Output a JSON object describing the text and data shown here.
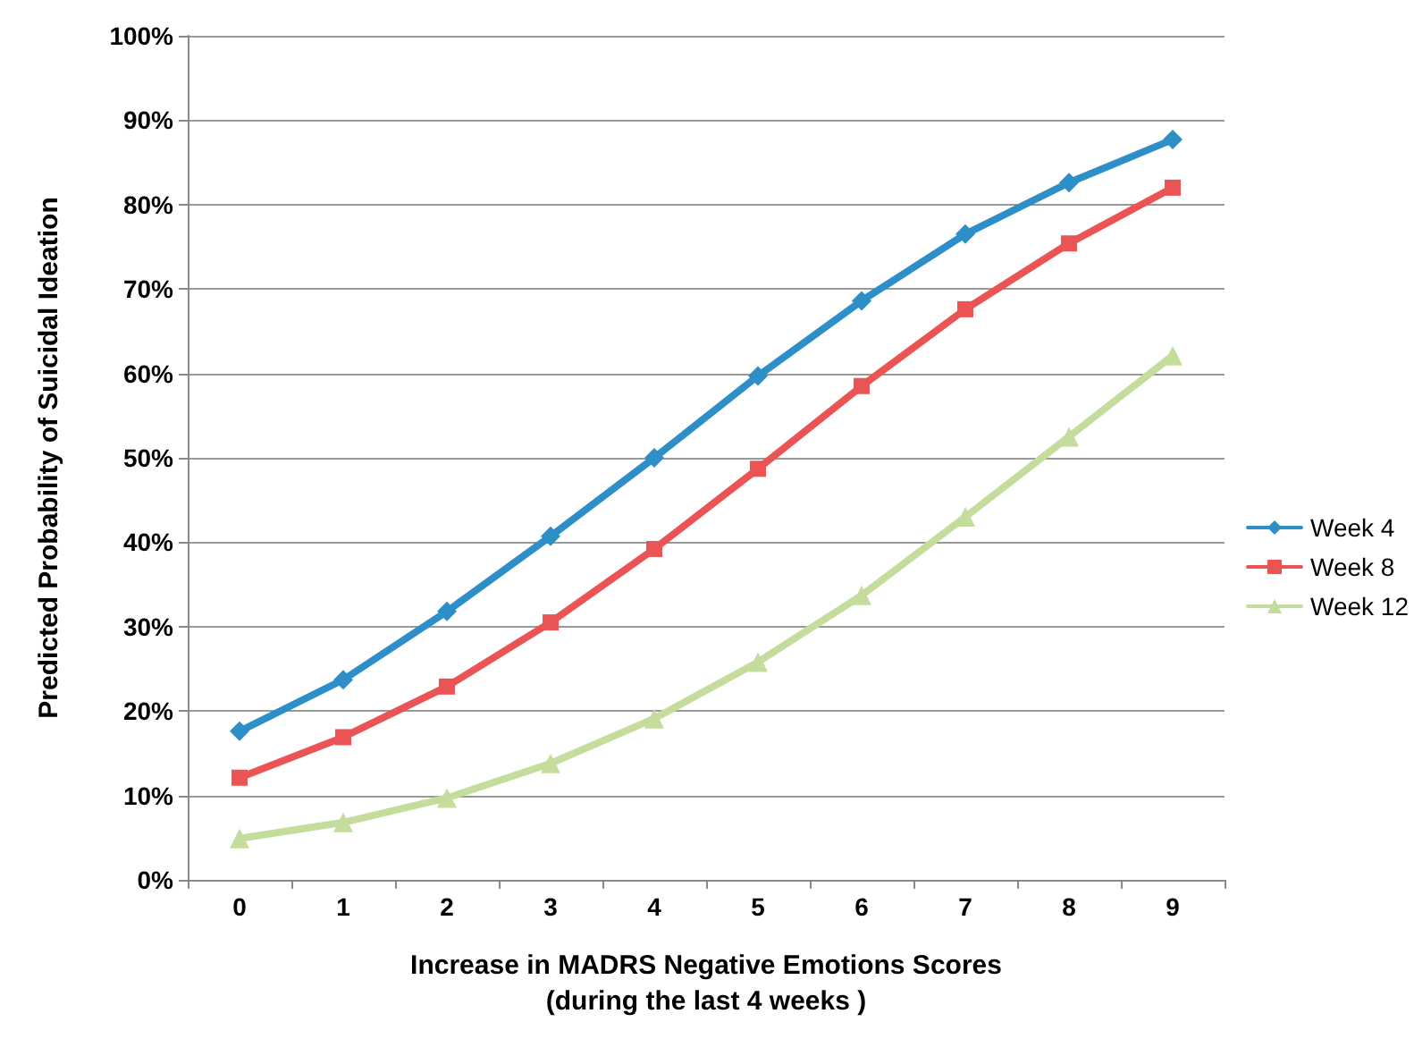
{
  "chart_data": {
    "type": "line",
    "xlabel": "Increase in MADRS Negative Emotions Scores\n(during the last 4 weeks )",
    "ylabel": "Predicted Probability of Suicidal Ideation",
    "categories": [
      "0",
      "1",
      "2",
      "3",
      "4",
      "5",
      "6",
      "7",
      "8",
      "9"
    ],
    "series": [
      {
        "name": "Week 4",
        "color": "#2e8fc8",
        "marker": "diamond",
        "values": [
          17.6,
          23.7,
          31.8,
          40.7,
          50,
          59.7,
          68.6,
          76.5,
          82.6,
          87.7
        ]
      },
      {
        "name": "Week 8",
        "color": "#ea5454",
        "marker": "square",
        "values": [
          12.1,
          16.9,
          22.9,
          30.5,
          39.2,
          48.7,
          58.5,
          67.6,
          75.4,
          82
        ]
      },
      {
        "name": "Week 12",
        "color": "#c4dc9c",
        "marker": "triangle",
        "values": [
          4.9,
          6.8,
          9.7,
          13.8,
          19.1,
          25.8,
          33.7,
          43,
          52.5,
          62.1
        ]
      }
    ],
    "ylim": [
      0,
      100
    ],
    "yticks": [
      {
        "value": 0,
        "label": "0%"
      },
      {
        "value": 10,
        "label": "10%"
      },
      {
        "value": 20,
        "label": "20%"
      },
      {
        "value": 30,
        "label": "30%"
      },
      {
        "value": 40,
        "label": "40%"
      },
      {
        "value": 50,
        "label": "50%"
      },
      {
        "value": 60,
        "label": "60%"
      },
      {
        "value": 70,
        "label": "70%"
      },
      {
        "value": 80,
        "label": "80%"
      },
      {
        "value": 90,
        "label": "90%"
      },
      {
        "value": 100,
        "label": "100%"
      }
    ],
    "grid": "y",
    "legend": "right",
    "line_style": "solid"
  }
}
